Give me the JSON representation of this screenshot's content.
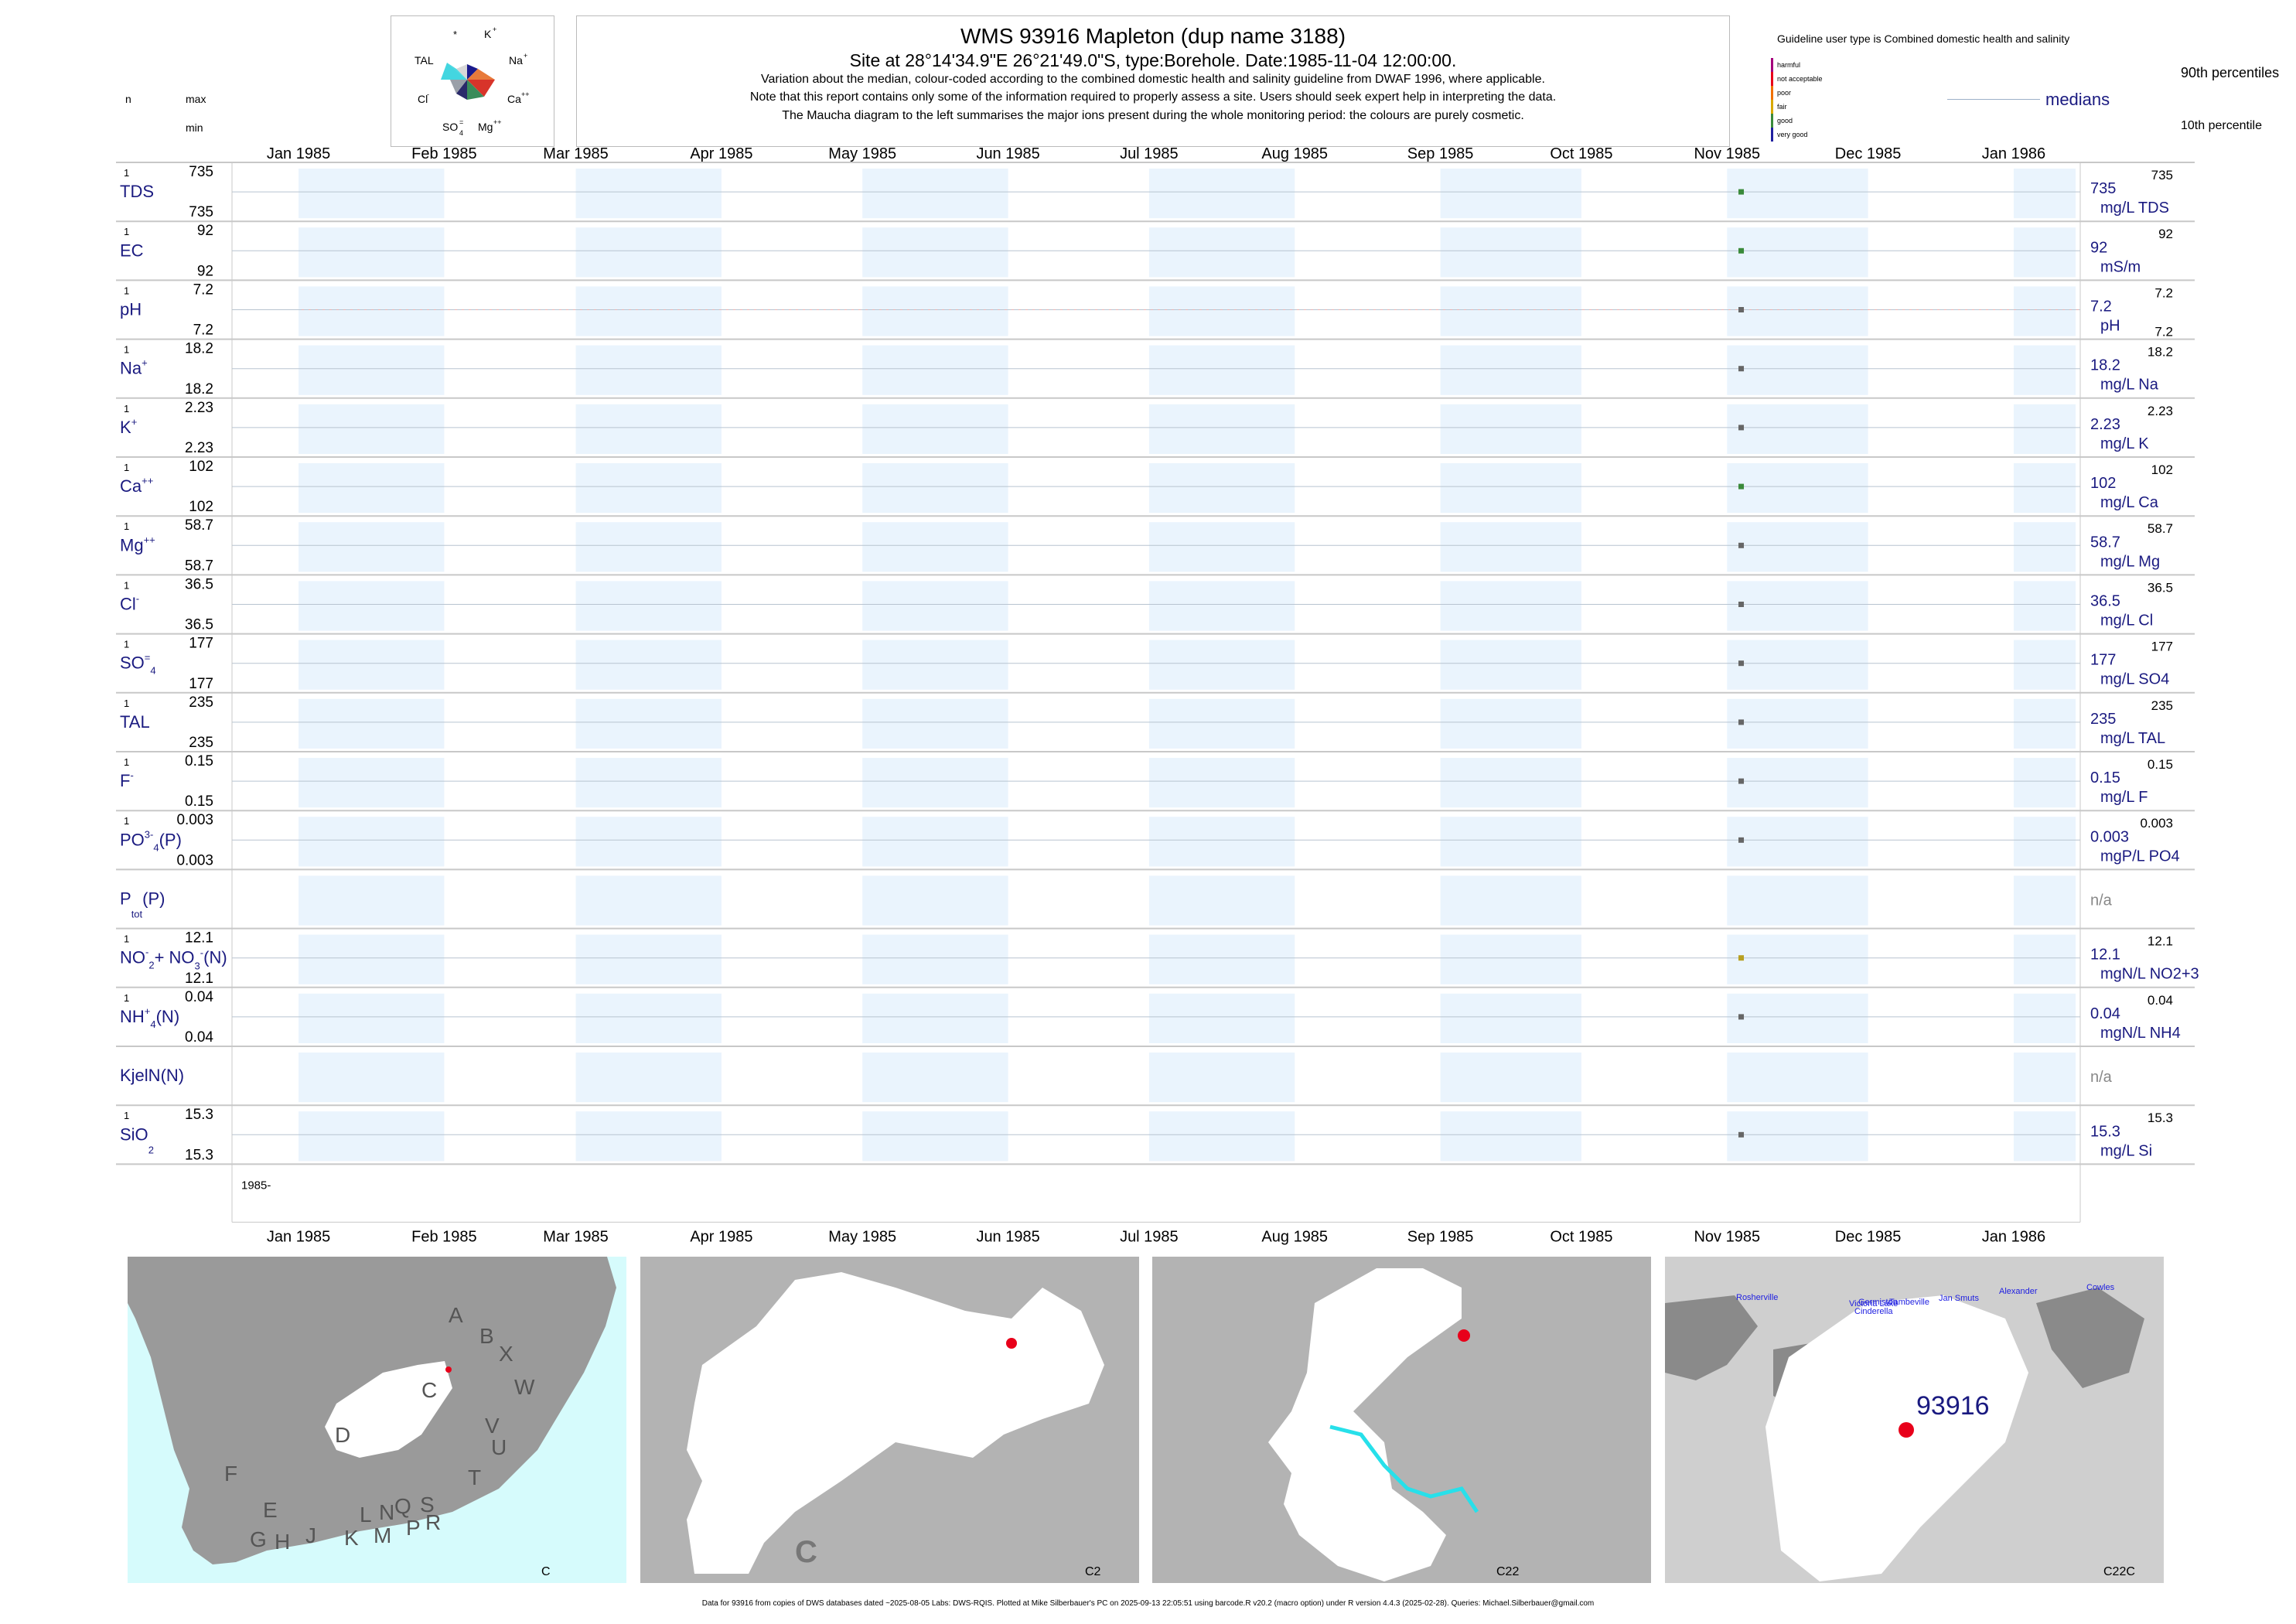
{
  "header": {
    "title": "WMS 93916  Mapleton (dup name 3188)",
    "site": "Site at 28°14'34.9\"E 26°21'49.0\"S, type:Borehole. Date:1985-11-04 12:00:00.",
    "note1": "Variation about the median,  colour-coded according to the combined domestic health and salinity guideline from DWAF 1996, where applicable.",
    "note2": "Note that this report contains only some of the information required to properly assess a site. Users should seek expert help in interpreting the data.",
    "note3": "The Maucha diagram to the left summarises the major ions present during the whole monitoring period: the colours are purely cosmetic."
  },
  "maucha": {
    "labels": [
      "*",
      "K",
      "TAL",
      "Na",
      "Cl",
      "Ca",
      "SO",
      "Mg"
    ],
    "colors": {
      "K": "#1a1a8c",
      "Na": "#e87a3a",
      "Ca": "#d8342a",
      "Mg": "#3a8c5a",
      "SO4": "#2a2a6a",
      "Cl": "#9aa0a8",
      "TAL": "#43d6e0",
      "star": "#cfcfcf"
    }
  },
  "left_header": {
    "n": "n",
    "max": "max",
    "min": "min"
  },
  "legend": {
    "guideline_title": "Guideline user type is Combined domestic health and salinity",
    "classes": [
      "harmful",
      "not acceptable",
      "poor",
      "fair",
      "good",
      "very good"
    ],
    "class_colors": [
      "#a4007c",
      "#e8001a",
      "#f07000",
      "#d8a800",
      "#3a8a3a",
      "#2020a0"
    ],
    "p90": "90th percentiles",
    "medians": "medians",
    "p10": "10th percentile"
  },
  "chart_data": {
    "type": "scatter",
    "x_ticks": [
      "Jan 1985",
      "Feb 1985",
      "Mar 1985",
      "Apr 1985",
      "May 1985",
      "Jun 1985",
      "Jul 1985",
      "Aug 1985",
      "Sep 1985",
      "Oct 1985",
      "Nov 1985",
      "Dec 1985",
      "Jan 1986"
    ],
    "xlim": [
      "1985-01-01",
      "1986-01-01"
    ],
    "year_label": "1985-",
    "sample_date": "1985-11-04",
    "rows": [
      {
        "name": "TDS",
        "sub": "",
        "sup": "",
        "n": "1",
        "max": "735",
        "min": "735",
        "median": "735",
        "unit": "mg/L TDS",
        "p90": "735",
        "p10": "",
        "value": 735,
        "color": "#3a8a3a"
      },
      {
        "name": "EC",
        "sub": "",
        "sup": "",
        "n": "1",
        "max": "92",
        "min": "92",
        "median": "92",
        "unit": "mS/m",
        "p90": "92",
        "p10": "",
        "value": 92,
        "color": "#3a8a3a"
      },
      {
        "name": "pH",
        "sub": "",
        "sup": "",
        "n": "1",
        "max": "7.2",
        "min": "7.2",
        "median": "7.2",
        "unit": "pH",
        "p90": "7.2",
        "p10": "7.2",
        "value": 7.2,
        "color": "#666666"
      },
      {
        "name": "Na",
        "sub": "",
        "sup": "+",
        "n": "1",
        "max": "18.2",
        "min": "18.2",
        "median": "18.2",
        "unit": "mg/L Na",
        "p90": "18.2",
        "p10": "",
        "value": 18.2,
        "color": "#666666"
      },
      {
        "name": "K",
        "sub": "",
        "sup": "+",
        "n": "1",
        "max": "2.23",
        "min": "2.23",
        "median": "2.23",
        "unit": "mg/L K",
        "p90": "2.23",
        "p10": "",
        "value": 2.23,
        "color": "#666666"
      },
      {
        "name": "Ca",
        "sub": "",
        "sup": "++",
        "n": "1",
        "max": "102",
        "min": "102",
        "median": "102",
        "unit": "mg/L Ca",
        "p90": "102",
        "p10": "",
        "value": 102,
        "color": "#3a8a3a"
      },
      {
        "name": "Mg",
        "sub": "",
        "sup": "++",
        "n": "1",
        "max": "58.7",
        "min": "58.7",
        "median": "58.7",
        "unit": "mg/L Mg",
        "p90": "58.7",
        "p10": "",
        "value": 58.7,
        "color": "#666666"
      },
      {
        "name": "Cl",
        "sub": "",
        "sup": "-",
        "n": "1",
        "max": "36.5",
        "min": "36.5",
        "median": "36.5",
        "unit": "mg/L Cl",
        "p90": "36.5",
        "p10": "",
        "value": 36.5,
        "color": "#666666"
      },
      {
        "name": "SO",
        "sub": "4",
        "sup": "=",
        "n": "1",
        "max": "177",
        "min": "177",
        "median": "177",
        "unit": "mg/L SO4",
        "p90": "177",
        "p10": "",
        "value": 177,
        "color": "#666666"
      },
      {
        "name": "TAL",
        "sub": "",
        "sup": "",
        "n": "1",
        "max": "235",
        "min": "235",
        "median": "235",
        "unit": "mg/L TAL",
        "p90": "235",
        "p10": "",
        "value": 235,
        "color": "#666666"
      },
      {
        "name": "F",
        "sub": "",
        "sup": "-",
        "n": "1",
        "max": "0.15",
        "min": "0.15",
        "median": "0.15",
        "unit": "mg/L F",
        "p90": "0.15",
        "p10": "",
        "value": 0.15,
        "color": "#666666"
      },
      {
        "name": "PO",
        "sub": "4",
        "sup": "3-",
        "tail": "(P)",
        "n": "1",
        "max": "0.003",
        "min": "0.003",
        "median": "0.003",
        "unit": "mgP/L PO4",
        "p90": "0.003",
        "p10": "",
        "value": 0.003,
        "color": "#666666"
      },
      {
        "name": "P",
        "sub": "tot",
        "sup": "",
        "tail": "(P)",
        "n": "",
        "max": "",
        "min": "",
        "median": "n/a",
        "unit": "",
        "p90": "",
        "p10": "",
        "value": null,
        "color": "#666666"
      },
      {
        "name": "NO",
        "sub": "2",
        "sup": "-",
        "tail": "+ NO",
        "sub2": "3",
        "sup2": "-",
        "tail2": "(N)",
        "n": "1",
        "max": "12.1",
        "min": "12.1",
        "median": "12.1",
        "unit": "mgN/L NO2+3",
        "p90": "12.1",
        "p10": "",
        "value": 12.1,
        "color": "#b8a020"
      },
      {
        "name": "NH",
        "sub": "4",
        "sup": "+",
        "tail": "(N)",
        "n": "1",
        "max": "0.04",
        "min": "0.04",
        "median": "0.04",
        "unit": "mgN/L NH4",
        "p90": "0.04",
        "p10": "",
        "value": 0.04,
        "color": "#666666"
      },
      {
        "name": "KjelN(N)",
        "sub": "",
        "sup": "",
        "n": "",
        "max": "",
        "min": "",
        "median": "n/a",
        "unit": "",
        "p90": "",
        "p10": "",
        "value": null,
        "color": "#666666"
      },
      {
        "name": "SiO",
        "sub": "2",
        "sup": "",
        "n": "1",
        "max": "15.3",
        "min": "15.3",
        "median": "15.3",
        "unit": "mg/L Si",
        "p90": "15.3",
        "p10": "",
        "value": 15.3,
        "color": "#666666"
      }
    ]
  },
  "maps": [
    {
      "caption": "C",
      "labels": [
        "A",
        "B",
        "X",
        "W",
        "C",
        "D",
        "V",
        "U",
        "T",
        "F",
        "E",
        "G",
        "H",
        "J",
        "K",
        "L",
        "N",
        "M",
        "Q",
        "P",
        "S",
        "R"
      ]
    },
    {
      "caption": "C2",
      "big": "C"
    },
    {
      "caption": "C22"
    },
    {
      "caption": "C22C",
      "site": "93916",
      "places": [
        "Rosherville",
        "Victoria Lake",
        "Cinderella",
        "Germiston",
        "Tambeville",
        "Jan Smuts",
        "Alexander",
        "Cowles"
      ]
    }
  ],
  "footer": "Data for 93916 from copies of DWS databases dated ~2025-08-05 Labs: DWS-RQIS. Plotted at Mike Silberbauer's PC on 2025-09-13 22:05:51 using barcode.R v20.2 (macro option) under R version 4.4.3 (2025-02-28). Queries: Michael.Silberbauer@gmail.com"
}
